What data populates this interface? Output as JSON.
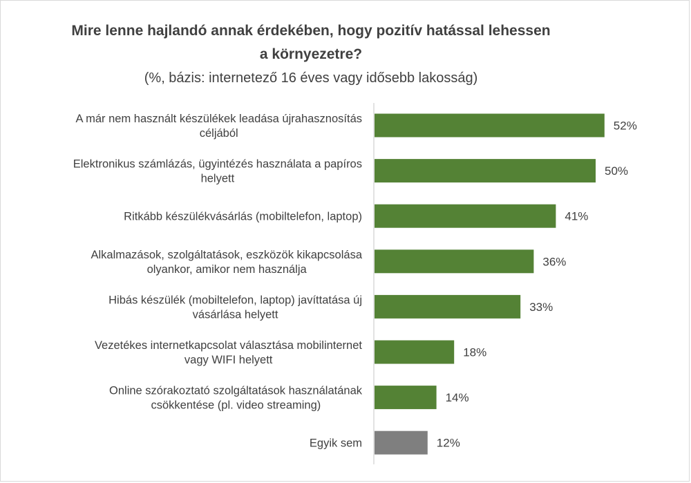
{
  "chart_data": {
    "type": "bar",
    "orientation": "horizontal",
    "title_line1": "Mire lenne hajlandó annak érdekében, hogy pozitív hatással lehessen",
    "title_line2": "a környezetre?",
    "subtitle": "(%, bázis: internetező 16 éves vagy idősebb lakosság)",
    "categories": [
      [
        "A már nem használt készülékek leadása újrahasznosítás",
        "céljából"
      ],
      [
        "Elektronikus számlázás, ügyintézés használata a papíros",
        "helyett"
      ],
      [
        "Ritkább készülékvásárlás (mobiltelefon, laptop)"
      ],
      [
        "Alkalmazások, szolgáltatások, eszközök kikapcsolása",
        "olyankor, amikor nem használja"
      ],
      [
        "Hibás készülék (mobiltelefon, laptop) javíttatása új",
        "vásárlása helyett"
      ],
      [
        "Vezetékes internetkapcsolat választása mobilinternet",
        "vagy WIFI helyett"
      ],
      [
        "Online szórakoztató szolgáltatások használatának",
        "csökkentése (pl. video streaming)"
      ],
      [
        "Egyik sem"
      ]
    ],
    "values": [
      52,
      50,
      41,
      36,
      33,
      18,
      14,
      12
    ],
    "value_labels": [
      "52%",
      "50%",
      "41%",
      "36%",
      "33%",
      "18%",
      "14%",
      "12%"
    ],
    "bar_colors": [
      "#548235",
      "#548235",
      "#548235",
      "#548235",
      "#548235",
      "#548235",
      "#548235",
      "#7f7f7f"
    ],
    "axis_color": "#d9d9d9",
    "xlim": [
      0,
      60
    ],
    "grid": false,
    "legend": "none"
  }
}
